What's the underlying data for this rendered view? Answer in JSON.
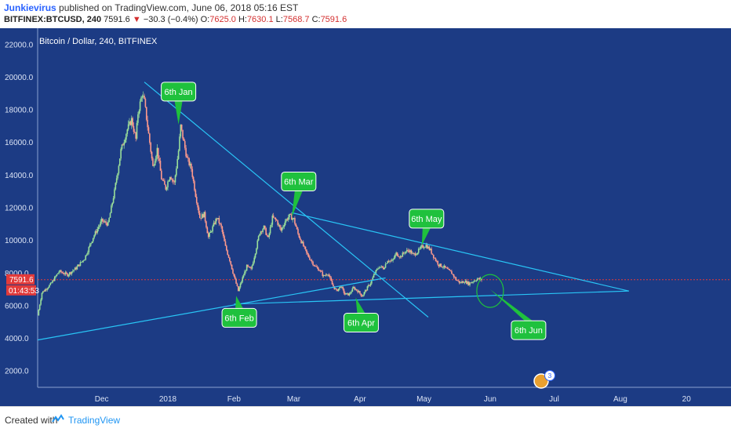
{
  "header": {
    "author": "Junkievirus",
    "published": "published on TradingView.com, June 06, 2018 05:16 EST",
    "symbol": "BITFINEX:BTCUSD, 240",
    "last": "7591.6",
    "change": "−30.3 (−0.4%)",
    "o_label": "O:",
    "o_value": "7625.0",
    "h_label": "H:",
    "h_value": "7630.1",
    "l_label": "L:",
    "l_value": "7568.7",
    "c_label": "C:",
    "c_value": "7591.6"
  },
  "chart_title": "Bitcoin / Dollar, 240, BITFINEX",
  "price_tag": "7591.6",
  "countdown_tag": "01:43:53",
  "events_badge": "3",
  "footer": {
    "created_with": "Created with",
    "brand": "TradingView"
  },
  "colors": {
    "background": "#1c3b84",
    "trendline": "#29c5f6",
    "callout": "#1fc13d",
    "price_line": "#e23a3a",
    "bull": "#9adf9a",
    "bear": "#ff9a8c"
  },
  "chart_data": {
    "type": "line",
    "title": "Bitcoin / Dollar, 240, BITFINEX",
    "ylim": [
      1000,
      23000
    ],
    "y_ticks": [
      2000,
      4000,
      6000,
      8000,
      10000,
      12000,
      14000,
      16000,
      18000,
      20000,
      22000
    ],
    "y_tick_labels": [
      "2000.0",
      "4000.0",
      "6000.0",
      "8000.0",
      "10000.0",
      "12000.0",
      "14000.0",
      "16000.0",
      "18000.0",
      "20000.0",
      "22000.0"
    ],
    "x_tick_labels": [
      "Dec",
      "2018",
      "Feb",
      "Mar",
      "Apr",
      "May",
      "Jun",
      "Jul",
      "Aug",
      "20"
    ],
    "x_tick_days": [
      30,
      61,
      92,
      120,
      151,
      181,
      212,
      242,
      273,
      304
    ],
    "xlim": [
      0,
      312
    ],
    "last_price": 7591.6,
    "price_path": [
      [
        0,
        5400
      ],
      [
        2,
        6800
      ],
      [
        6,
        7300
      ],
      [
        10,
        8100
      ],
      [
        14,
        7900
      ],
      [
        18,
        8300
      ],
      [
        22,
        8900
      ],
      [
        26,
        10200
      ],
      [
        30,
        11200
      ],
      [
        33,
        11000
      ],
      [
        36,
        13000
      ],
      [
        39,
        15500
      ],
      [
        42,
        16800
      ],
      [
        44,
        17400
      ],
      [
        46,
        16200
      ],
      [
        47,
        17800
      ],
      [
        49,
        19000
      ],
      [
        50,
        18500
      ],
      [
        52,
        16500
      ],
      [
        54,
        14500
      ],
      [
        56,
        15600
      ],
      [
        58,
        13800
      ],
      [
        60,
        13200
      ],
      [
        62,
        14000
      ],
      [
        64,
        13500
      ],
      [
        66,
        15500
      ],
      [
        67,
        17000
      ],
      [
        70,
        15000
      ],
      [
        72,
        14400
      ],
      [
        74,
        12800
      ],
      [
        76,
        11400
      ],
      [
        78,
        11600
      ],
      [
        80,
        10200
      ],
      [
        82,
        10800
      ],
      [
        84,
        11400
      ],
      [
        86,
        10800
      ],
      [
        88,
        9600
      ],
      [
        90,
        8800
      ],
      [
        92,
        7800
      ],
      [
        94,
        6900
      ],
      [
        96,
        7700
      ],
      [
        98,
        8400
      ],
      [
        100,
        8200
      ],
      [
        102,
        9300
      ],
      [
        104,
        10500
      ],
      [
        106,
        10800
      ],
      [
        108,
        10100
      ],
      [
        110,
        11400
      ],
      [
        112,
        11200
      ],
      [
        114,
        10600
      ],
      [
        116,
        11200
      ],
      [
        118,
        11500
      ],
      [
        120,
        11300
      ],
      [
        122,
        10400
      ],
      [
        124,
        9800
      ],
      [
        126,
        9200
      ],
      [
        128,
        8800
      ],
      [
        130,
        8400
      ],
      [
        132,
        8200
      ],
      [
        134,
        7800
      ],
      [
        136,
        8000
      ],
      [
        138,
        7300
      ],
      [
        140,
        6900
      ],
      [
        142,
        7200
      ],
      [
        144,
        6700
      ],
      [
        146,
        6700
      ],
      [
        148,
        7100
      ],
      [
        150,
        6900
      ],
      [
        152,
        6600
      ],
      [
        154,
        7000
      ],
      [
        156,
        7400
      ],
      [
        158,
        8000
      ],
      [
        160,
        8400
      ],
      [
        162,
        8300
      ],
      [
        164,
        8800
      ],
      [
        166,
        8700
      ],
      [
        168,
        9200
      ],
      [
        170,
        9000
      ],
      [
        172,
        9300
      ],
      [
        174,
        9400
      ],
      [
        176,
        9100
      ],
      [
        178,
        9300
      ],
      [
        180,
        9600
      ],
      [
        182,
        9700
      ],
      [
        184,
        9400
      ],
      [
        186,
        8900
      ],
      [
        188,
        8500
      ],
      [
        190,
        8400
      ],
      [
        192,
        8200
      ],
      [
        194,
        8000
      ],
      [
        196,
        7600
      ],
      [
        198,
        7400
      ],
      [
        200,
        7500
      ],
      [
        202,
        7350
      ],
      [
        204,
        7500
      ],
      [
        206,
        7650
      ],
      [
        208,
        7591.6
      ]
    ],
    "trendlines": [
      {
        "from": [
          50,
          19700
        ],
        "to": [
          183,
          5300
        ]
      },
      {
        "from": [
          0,
          3900
        ],
        "to": [
          163,
          7700
        ]
      },
      {
        "from": [
          119,
          11700
        ],
        "to": [
          277,
          6900
        ]
      },
      {
        "from": [
          92,
          6100
        ],
        "to": [
          277,
          6900
        ]
      }
    ],
    "annotations": [
      {
        "text": "6th Jan",
        "day": 66,
        "price": 17100
      },
      {
        "text": "6th Feb",
        "day": 93,
        "price": 6600
      },
      {
        "text": "6th Mar",
        "day": 119,
        "price": 11400
      },
      {
        "text": "6th Apr",
        "day": 149,
        "price": 6500
      },
      {
        "text": "6th May",
        "day": 180,
        "price": 9700
      },
      {
        "text": "6th Jun",
        "day": 212,
        "price": 7000
      }
    ]
  }
}
